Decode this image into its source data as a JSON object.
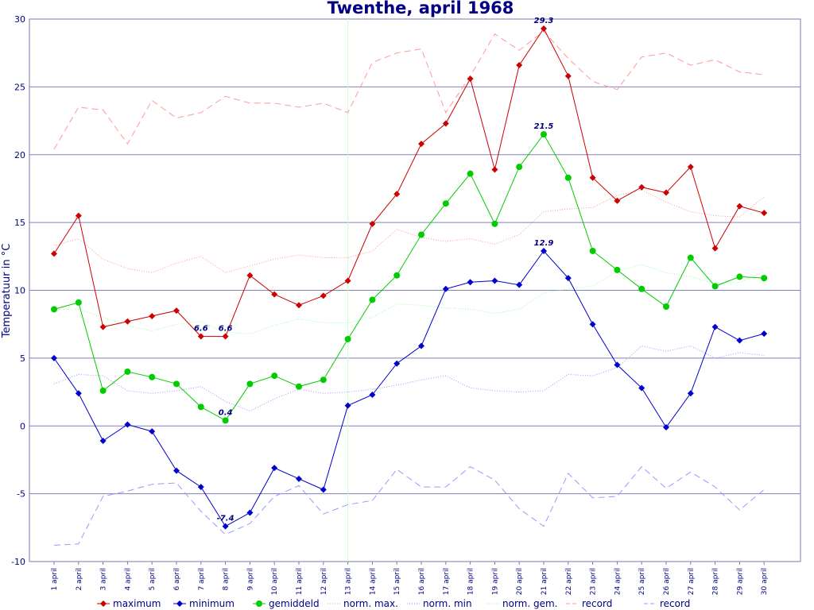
{
  "chart_data": {
    "type": "line",
    "title": "Twenthe, april 1968",
    "ylabel": "Temperatuur in °C",
    "ylim": [
      -10,
      30
    ],
    "yticks": [
      -10,
      -5,
      0,
      5,
      10,
      15,
      20,
      25,
      30
    ],
    "grid": "horizontal",
    "legend_position": "bottom",
    "categories": [
      "1 april",
      "2 april",
      "3 april",
      "4 april",
      "5 april",
      "6 april",
      "7 april",
      "8 april",
      "9 april",
      "10 april",
      "11 april",
      "12 april",
      "13 april",
      "14 april",
      "15 april",
      "16 april",
      "17 april",
      "18 april",
      "19 april",
      "20 april",
      "21 april",
      "22 april",
      "23 april",
      "24 april",
      "25 april",
      "26 april",
      "27 april",
      "28 april",
      "29 april",
      "30 april"
    ],
    "series": [
      {
        "name": "maximum",
        "color": "#cc0000",
        "style": "solid-diamond",
        "values": [
          12.7,
          15.5,
          7.3,
          7.7,
          8.1,
          8.5,
          6.6,
          6.6,
          11.1,
          9.7,
          8.9,
          9.6,
          10.7,
          14.9,
          17.1,
          20.8,
          22.3,
          25.6,
          18.9,
          26.6,
          29.3,
          25.8,
          18.3,
          16.6,
          17.6,
          17.2,
          19.1,
          13.1,
          16.2,
          15.7
        ]
      },
      {
        "name": "minimum",
        "color": "#0000cc",
        "style": "solid-diamond",
        "values": [
          5.0,
          2.4,
          -1.1,
          0.1,
          -0.4,
          -3.3,
          -4.5,
          -7.4,
          -6.4,
          -3.1,
          -3.9,
          -4.7,
          1.5,
          2.3,
          4.6,
          5.9,
          10.1,
          10.6,
          10.7,
          10.4,
          12.9,
          10.9,
          7.5,
          4.5,
          2.8,
          -0.1,
          2.4,
          7.3,
          6.3,
          6.8
        ]
      },
      {
        "name": "gemiddeld",
        "color": "#00cc00",
        "style": "solid-circle",
        "values": [
          8.6,
          9.1,
          2.6,
          4.0,
          3.6,
          3.1,
          1.4,
          0.4,
          3.1,
          3.7,
          2.9,
          3.4,
          6.4,
          9.3,
          11.1,
          14.1,
          16.4,
          18.6,
          14.9,
          19.1,
          21.5,
          18.3,
          12.9,
          11.5,
          10.1,
          8.8,
          12.4,
          10.3,
          11.0,
          10.9
        ]
      },
      {
        "name": "norm. max.",
        "color": "#ff9999",
        "style": "dotted",
        "values": [
          13.3,
          13.8,
          12.3,
          11.6,
          11.3,
          12.0,
          12.5,
          11.3,
          11.8,
          12.3,
          12.6,
          12.4,
          12.4,
          12.9,
          14.5,
          13.9,
          13.6,
          13.8,
          13.4,
          14.1,
          15.8,
          16.0,
          16.1,
          17.0,
          17.4,
          16.5,
          15.8,
          15.5,
          15.4,
          16.9
        ]
      },
      {
        "name": "norm. min",
        "color": "#9999ff",
        "style": "dotted",
        "values": [
          3.1,
          3.8,
          3.7,
          2.6,
          2.4,
          2.6,
          2.9,
          1.8,
          1.1,
          2.0,
          2.7,
          2.4,
          2.5,
          2.7,
          3.0,
          3.4,
          3.7,
          2.8,
          2.6,
          2.5,
          2.6,
          3.8,
          3.7,
          4.3,
          5.9,
          5.5,
          5.9,
          5.0,
          5.4,
          5.2
        ]
      },
      {
        "name": "norm. gem.",
        "color": "#99ff99",
        "style": "dotted",
        "values": [
          8.6,
          8.6,
          8.0,
          7.4,
          7.0,
          7.5,
          7.7,
          6.9,
          6.8,
          7.4,
          7.9,
          7.6,
          7.6,
          8.0,
          9.0,
          8.9,
          8.7,
          8.6,
          8.3,
          8.6,
          9.8,
          10.1,
          10.3,
          11.4,
          11.9,
          11.3,
          11.0,
          10.5,
          10.6,
          11.4
        ]
      },
      {
        "name": "record",
        "color": "#ff9999",
        "style": "dashed",
        "values": [
          20.4,
          23.5,
          23.3,
          20.8,
          24.0,
          22.7,
          23.1,
          24.3,
          23.8,
          23.8,
          23.5,
          23.8,
          23.1,
          26.8,
          27.5,
          27.8,
          23.1,
          25.8,
          28.9,
          27.7,
          29.1,
          27.1,
          25.4,
          24.8,
          27.2,
          27.5,
          26.6,
          27.0,
          26.1,
          25.9
        ]
      },
      {
        "name": "record",
        "color": "#9999ff",
        "style": "dashed",
        "values": [
          -8.8,
          -8.7,
          -5.2,
          -4.8,
          -4.3,
          -4.2,
          -6.3,
          -8.0,
          -7.2,
          -5.2,
          -4.4,
          -6.5,
          -5.8,
          -5.5,
          -3.2,
          -4.5,
          -4.5,
          -3.0,
          -4.0,
          -6.1,
          -7.4,
          -3.5,
          -5.3,
          -5.2,
          -3.0,
          -4.6,
          -3.4,
          -4.5,
          -6.2,
          -4.7
        ]
      }
    ],
    "annotations": [
      {
        "series": 0,
        "index": 6,
        "text": "6.6"
      },
      {
        "series": 0,
        "index": 7,
        "text": "6.6"
      },
      {
        "series": 0,
        "index": 20,
        "text": "29.3"
      },
      {
        "series": 1,
        "index": 7,
        "text": "-7.4"
      },
      {
        "series": 1,
        "index": 20,
        "text": "12.9"
      },
      {
        "series": 2,
        "index": 7,
        "text": "0.4"
      },
      {
        "series": 2,
        "index": 20,
        "text": "21.5"
      }
    ],
    "vertical_marker_index": 12
  }
}
